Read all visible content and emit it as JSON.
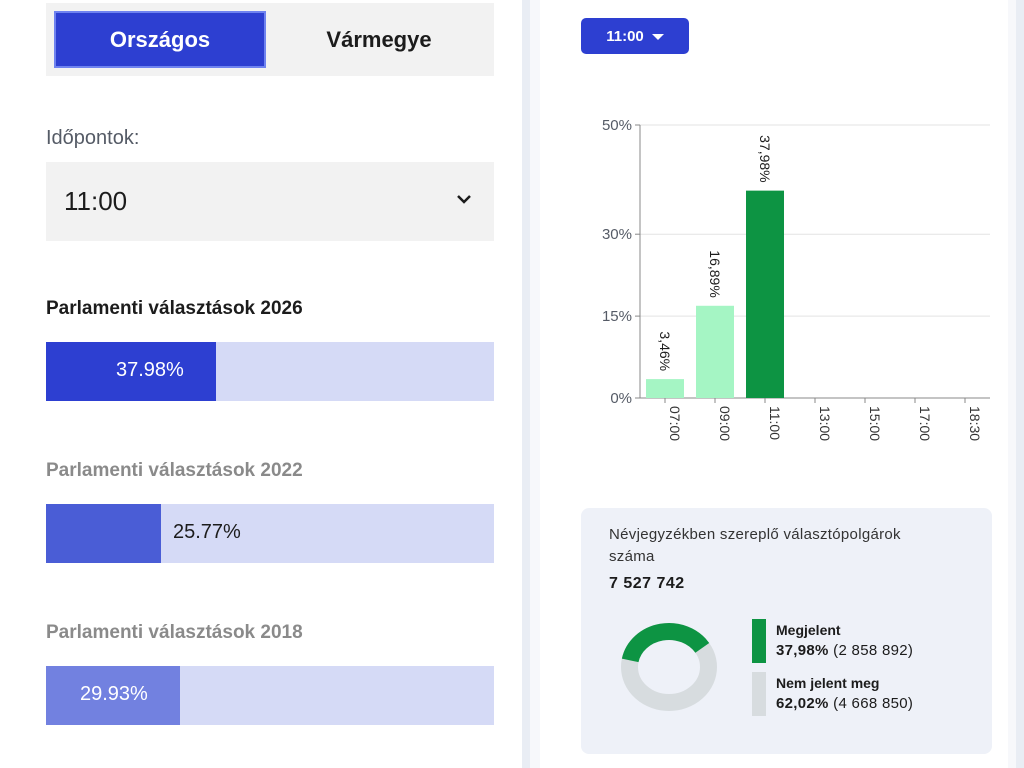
{
  "tabs": {
    "national": "Országos",
    "county": "Vármegye"
  },
  "times_label": "Időpontok:",
  "selected_time": "11:00",
  "elections": [
    {
      "title": "Parlamenti választások 2026",
      "value_text": "37.98%",
      "fraction": 0.3798,
      "color": "#2d3fd1"
    },
    {
      "title": "Parlamenti választások 2022",
      "value_text": "25.77%",
      "fraction": 0.2577,
      "color": "#4a5dd6"
    },
    {
      "title": "Parlamenti választások 2018",
      "value_text": "29.93%",
      "fraction": 0.2993,
      "color": "#7281e0"
    }
  ],
  "time_button": "11:00",
  "chart_data": {
    "type": "bar",
    "categories": [
      "07:00",
      "09:00",
      "11:00",
      "13:00",
      "15:00",
      "17:00",
      "18:30"
    ],
    "values": [
      3.46,
      16.89,
      37.98,
      null,
      null,
      null,
      null
    ],
    "data_labels": [
      "3,46%",
      "16,89%",
      "37,98%",
      "",
      "",
      "",
      ""
    ],
    "bar_colors": [
      "#a5f5c4",
      "#a5f5c4",
      "#0d9443",
      null,
      null,
      null,
      null
    ],
    "y_ticks": [
      0,
      15,
      30,
      50
    ],
    "y_tick_labels": [
      "0%",
      "15%",
      "30%",
      "50%"
    ],
    "ylim": [
      0,
      50
    ],
    "grid": true
  },
  "registered": {
    "label": "Névjegyzékben szereplő választópolgárok száma",
    "total": "7 527 742"
  },
  "turnout": {
    "appeared_label": "Megjelent",
    "appeared_pct": "37,98%",
    "appeared_count": "(2 858 892)",
    "appeared_fraction": 0.3798,
    "absent_label": "Nem jelent meg",
    "absent_pct": "62,02%",
    "absent_count": "(4 668 850)",
    "appeared_color": "#0d9443",
    "absent_color": "#d7dcdf"
  }
}
